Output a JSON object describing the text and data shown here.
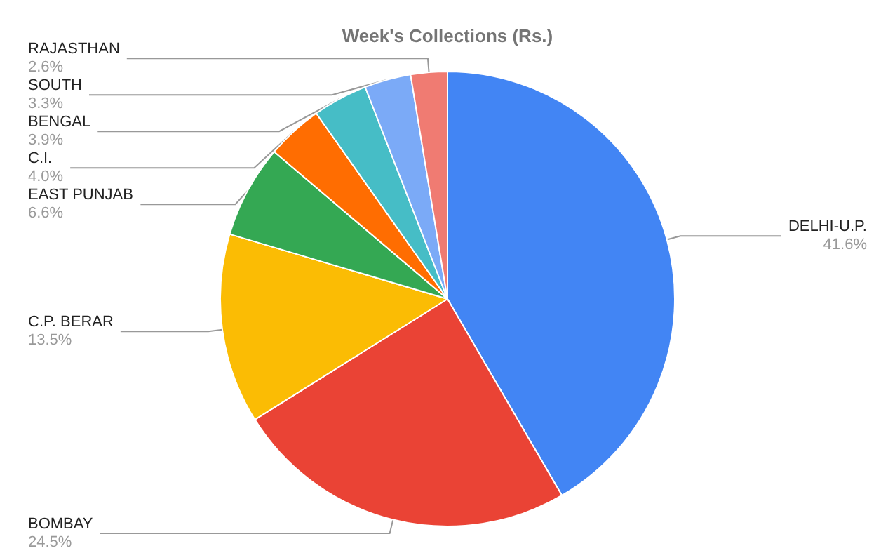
{
  "chart_data": {
    "type": "pie",
    "title": "Week's Collections (Rs.)",
    "categories": [
      "DELHI-U.P.",
      "BOMBAY",
      "C.P. BERAR",
      "EAST PUNJAB",
      "C.I.",
      "BENGAL",
      "SOUTH",
      "RAJASTHAN"
    ],
    "values": [
      41.6,
      24.5,
      13.5,
      6.6,
      4.0,
      3.9,
      3.3,
      2.6
    ],
    "value_labels": [
      "41.6%",
      "24.5%",
      "13.5%",
      "6.6%",
      "4.0%",
      "3.9%",
      "3.3%",
      "2.6%"
    ],
    "colors": [
      "#4285f4",
      "#ea4335",
      "#fbbc04",
      "#34a853",
      "#ff6d01",
      "#46bdc6",
      "#7baaf7",
      "#f07b72"
    ],
    "legend": false
  }
}
